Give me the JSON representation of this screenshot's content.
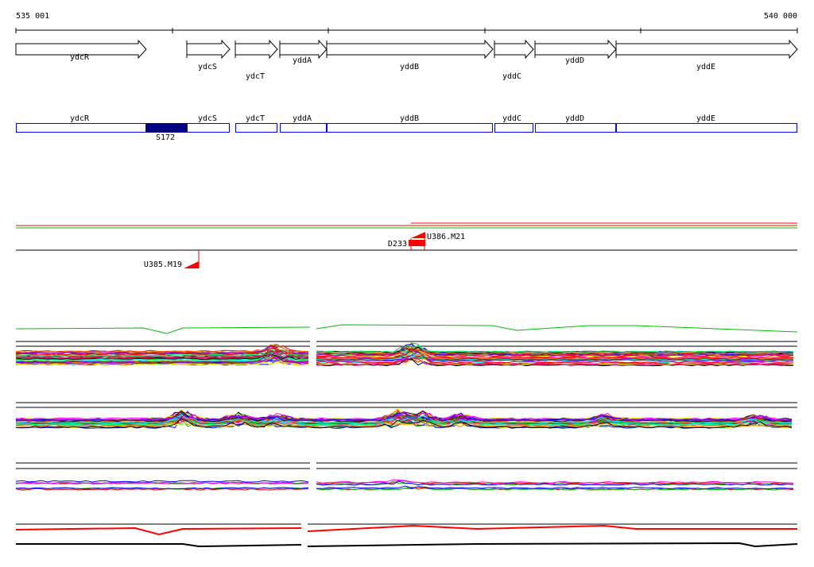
{
  "ruler": {
    "start_label": "535 001",
    "end_label": "540 000"
  },
  "genes": [
    {
      "name": "ydcR"
    },
    {
      "name": "ydcS"
    },
    {
      "name": "ydcT"
    },
    {
      "name": "yddA"
    },
    {
      "name": "yddB"
    },
    {
      "name": "yddC"
    },
    {
      "name": "yddD"
    },
    {
      "name": "yddE"
    }
  ],
  "segment_feature": {
    "label": "S172",
    "color": "#000080"
  },
  "markers": [
    {
      "label": "U386.M21"
    },
    {
      "label": "D233"
    },
    {
      "label": "U385.M19"
    }
  ],
  "colors": {
    "gene_box": "#0000ff",
    "marker": "#ff0000",
    "green_line": "#00c000"
  }
}
